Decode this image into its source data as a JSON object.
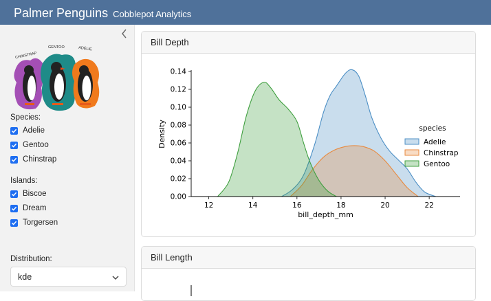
{
  "header": {
    "title": "Palmer Penguins",
    "subtitle": "Cobblepot Analytics"
  },
  "sidebar": {
    "collapse_icon": "chevron-left-icon",
    "logo_labels": [
      "CHINSTRAP",
      "GENTOO",
      "ADÉLIE"
    ],
    "species_label": "Species:",
    "species": [
      {
        "label": "Adelie",
        "checked": true
      },
      {
        "label": "Gentoo",
        "checked": true
      },
      {
        "label": "Chinstrap",
        "checked": true
      }
    ],
    "islands_label": "Islands:",
    "islands": [
      {
        "label": "Biscoe",
        "checked": true
      },
      {
        "label": "Dream",
        "checked": true
      },
      {
        "label": "Torgersen",
        "checked": true
      }
    ],
    "distribution_label": "Distribution:",
    "distribution_value": "kde"
  },
  "cards": [
    {
      "title": "Bill Depth"
    },
    {
      "title": "Bill Length"
    }
  ],
  "colors": {
    "header_bg": "#4f719a",
    "checkbox": "#1e6ef1",
    "adelie": "#4c8fc5",
    "chinstrap": "#e88a3f",
    "gentoo": "#3f9f3f"
  },
  "chart_data": {
    "type": "area",
    "xlabel": "bill_depth_mm",
    "ylabel": "Density",
    "xlim": [
      11.2,
      23.4
    ],
    "ylim": [
      0,
      0.14
    ],
    "xticks": [
      12,
      14,
      16,
      18,
      20,
      22
    ],
    "yticks": [
      0.0,
      0.02,
      0.04,
      0.06,
      0.08,
      0.1,
      0.12,
      0.14
    ],
    "legend": {
      "title": "species",
      "placement": "right"
    },
    "series": [
      {
        "name": "Adelie",
        "color": "#4c8fc5",
        "x": [
          15.3,
          15.8,
          16.3,
          16.8,
          17.2,
          17.5,
          17.8,
          18.2,
          18.5,
          18.8,
          19.1,
          19.4,
          19.8,
          20.2,
          20.6,
          21.0,
          21.4,
          21.8,
          22.3
        ],
        "y": [
          0.0,
          0.008,
          0.024,
          0.058,
          0.094,
          0.113,
          0.124,
          0.138,
          0.142,
          0.135,
          0.113,
          0.088,
          0.066,
          0.051,
          0.041,
          0.031,
          0.016,
          0.005,
          0.0
        ]
      },
      {
        "name": "Chinstrap",
        "color": "#e88a3f",
        "x": [
          15.7,
          16.2,
          16.7,
          17.2,
          17.7,
          18.2,
          18.6,
          19.0,
          19.5,
          20.0,
          20.5,
          21.0,
          21.5
        ],
        "y": [
          0.0,
          0.012,
          0.03,
          0.044,
          0.052,
          0.056,
          0.057,
          0.056,
          0.051,
          0.04,
          0.025,
          0.01,
          0.0
        ]
      },
      {
        "name": "Gentoo",
        "color": "#3f9f3f",
        "x": [
          12.4,
          12.9,
          13.3,
          13.7,
          14.1,
          14.5,
          14.8,
          15.2,
          15.6,
          16.0,
          16.3,
          16.6,
          17.0,
          17.4,
          17.8
        ],
        "y": [
          0.0,
          0.016,
          0.048,
          0.09,
          0.118,
          0.128,
          0.122,
          0.108,
          0.098,
          0.084,
          0.06,
          0.038,
          0.018,
          0.006,
          0.0
        ]
      }
    ]
  },
  "chart2_data": {
    "type": "area",
    "note_visible": ""
  }
}
